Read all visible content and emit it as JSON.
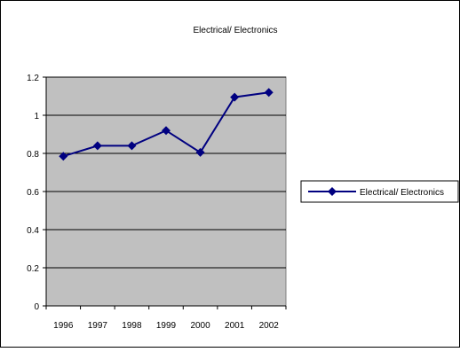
{
  "chart_data": {
    "type": "line",
    "title": "Electrical/ Electronics",
    "xlabel": "",
    "ylabel": "",
    "categories": [
      "1996",
      "1997",
      "1998",
      "1999",
      "2000",
      "2001",
      "2002"
    ],
    "series": [
      {
        "name": "Electrical/ Electronics",
        "values": [
          0.785,
          0.84,
          0.84,
          0.92,
          0.805,
          1.095,
          1.12
        ],
        "color": "#000080",
        "marker": "diamond"
      }
    ],
    "ylim": [
      0,
      1.2
    ],
    "yticks": [
      "0",
      "0.2",
      "0.4",
      "0.6",
      "0.8",
      "1",
      "1.2"
    ],
    "grid": true,
    "plot_background": "#c0c0c0",
    "legend_position": "right"
  }
}
